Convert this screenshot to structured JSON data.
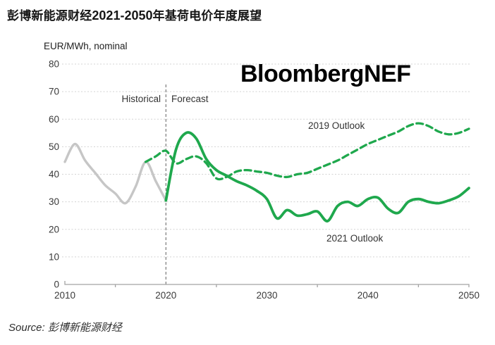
{
  "header": {
    "title_prefix": "彭博新能源财经",
    "title_range": "2021-2050",
    "title_suffix": "年基荷电价年度展望"
  },
  "watermark": "BloombergNEF",
  "source_text": "Source: 彭博新能源财经",
  "chart_data": {
    "type": "line",
    "unit_label": "EUR/MWh, nominal",
    "region_labels": {
      "historical": "Historical",
      "forecast": "Forecast"
    },
    "xlim": [
      2010,
      2050
    ],
    "ylim": [
      0,
      80
    ],
    "x_ticks": [
      2010,
      2020,
      2030,
      2040,
      2050
    ],
    "x_minor_ticks": [
      2015,
      2025,
      2035,
      2045
    ],
    "y_ticks": [
      0,
      10,
      20,
      30,
      40,
      50,
      60,
      70,
      80
    ],
    "divider_year": 2020,
    "grid": "horizontal-dashed",
    "colors": {
      "green": "#1fa84d",
      "gray": "#c6c6c6",
      "gridline": "#d3d3d3",
      "axis": "#a3a3a3",
      "divider": "#6e6e6e"
    },
    "series": [
      {
        "name": "Historical",
        "color": "#c6c6c6",
        "style": "solid",
        "width": 3.4,
        "x_start": 2010,
        "values": [
          44.5,
          51,
          45,
          40.5,
          36,
          33,
          29.5,
          35.5,
          44.5,
          37.5,
          30.5
        ]
      },
      {
        "name": "2019 Outlook",
        "color": "#1fa84d",
        "style": "dashed",
        "width": 3.3,
        "x_start": 2018,
        "values": [
          44.5,
          46.5,
          48.5,
          44,
          45.5,
          46.5,
          44,
          38.5,
          39,
          41,
          41.5,
          41,
          40.5,
          39.5,
          39,
          40,
          40.5,
          42,
          43.5,
          45,
          47,
          49,
          51,
          52.5,
          54,
          55.5,
          57.5,
          58.5,
          57.5,
          55.5,
          54.5,
          55,
          56.5
        ]
      },
      {
        "name": "2021 Outlook",
        "color": "#1fa84d",
        "style": "solid",
        "width": 3.8,
        "x_start": 2020,
        "values": [
          30.5,
          49,
          55,
          53,
          45.5,
          41.5,
          39.5,
          37.5,
          36,
          34,
          31,
          24,
          27,
          25,
          25.5,
          26.5,
          23,
          28.5,
          30,
          28.5,
          31,
          31.5,
          27.5,
          26,
          30,
          31,
          30,
          29.5,
          30.5,
          32,
          35
        ]
      }
    ]
  }
}
